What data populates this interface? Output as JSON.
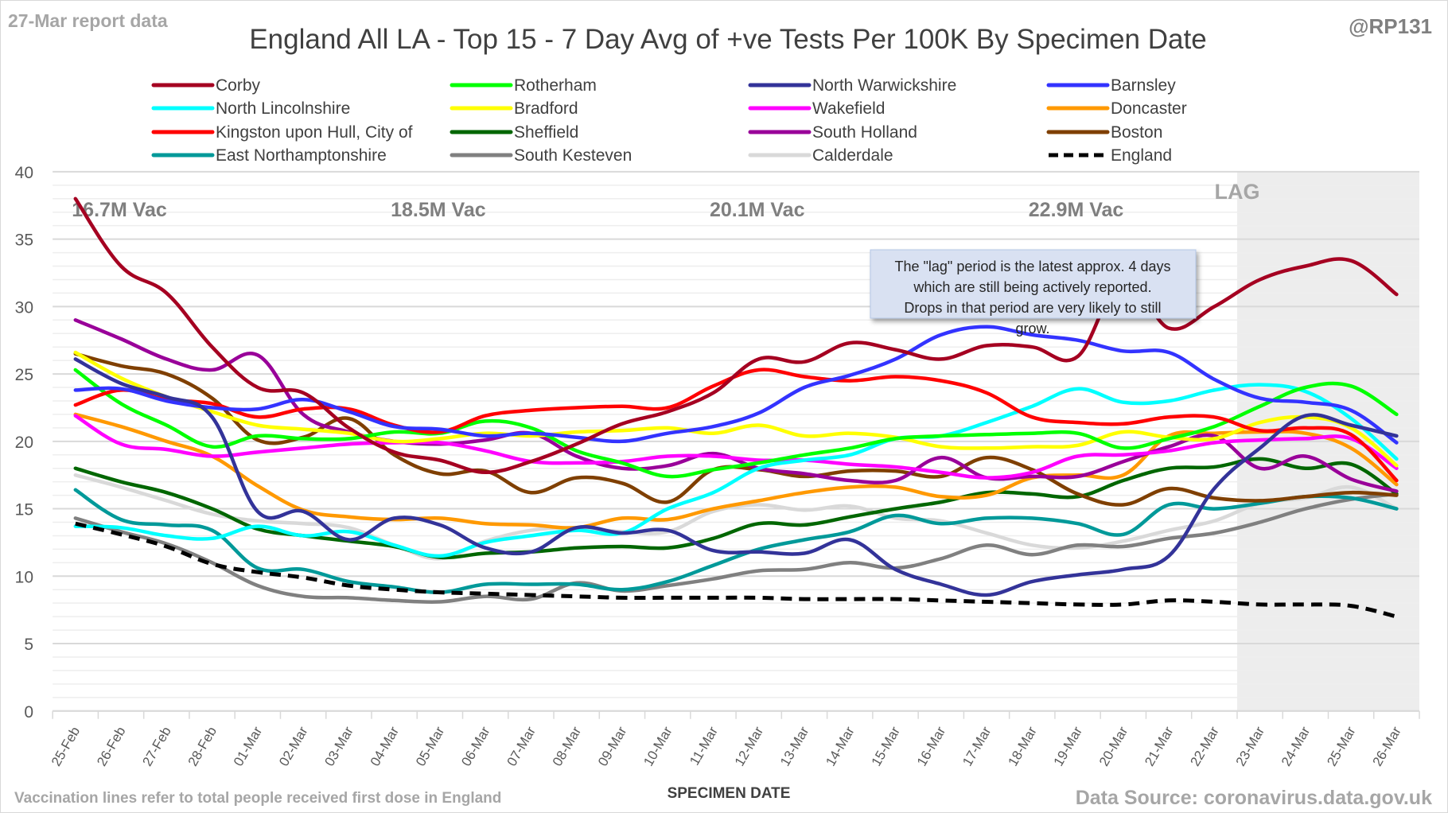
{
  "header": {
    "report_note": "27-Mar report data",
    "handle": "@RP131"
  },
  "footer": {
    "vaccination_note": "Vaccination lines refer to total people received first dose in England",
    "source": "Data Source: coronavirus.data.gov.uk"
  },
  "chart_data": {
    "type": "line",
    "title": "England All LA - Top 15 - 7 Day Avg of +ve Tests Per 100K By Specimen Date",
    "xlabel": "SPECIMEN DATE",
    "ylabel": "",
    "ylim": [
      0,
      40
    ],
    "yticks": [
      0,
      5,
      10,
      15,
      20,
      25,
      30,
      35,
      40
    ],
    "grid": true,
    "legend_position": "top",
    "categories": [
      "25-Feb",
      "26-Feb",
      "27-Feb",
      "28-Feb",
      "01-Mar",
      "02-Mar",
      "03-Mar",
      "04-Mar",
      "05-Mar",
      "06-Mar",
      "07-Mar",
      "08-Mar",
      "09-Mar",
      "10-Mar",
      "11-Mar",
      "12-Mar",
      "13-Mar",
      "14-Mar",
      "15-Mar",
      "16-Mar",
      "17-Mar",
      "18-Mar",
      "19-Mar",
      "20-Mar",
      "21-Mar",
      "22-Mar",
      "23-Mar",
      "24-Mar",
      "25-Mar",
      "26-Mar"
    ],
    "series": [
      {
        "name": "Corby",
        "color": "#a50021",
        "dash": false,
        "values": [
          38.0,
          33.0,
          31.0,
          27.0,
          24.0,
          23.6,
          21.0,
          19.2,
          18.6,
          17.7,
          18.5,
          19.8,
          21.3,
          22.2,
          23.6,
          26.1,
          25.9,
          27.3,
          26.8,
          26.1,
          27.1,
          27.0,
          26.3,
          32.2,
          28.4,
          30.0,
          32.0,
          33.0,
          33.4,
          30.9
        ]
      },
      {
        "name": "Rotherham",
        "color": "#00ff00",
        "dash": false,
        "values": [
          25.3,
          22.8,
          21.2,
          19.6,
          20.4,
          20.2,
          20.2,
          20.7,
          20.6,
          21.5,
          21.0,
          19.3,
          18.4,
          17.4,
          17.9,
          18.4,
          19.0,
          19.5,
          20.2,
          20.4,
          20.5,
          20.6,
          20.6,
          19.5,
          20.2,
          21.1,
          22.6,
          24.0,
          24.1,
          22.0
        ]
      },
      {
        "name": "North Warwickshire",
        "color": "#333399",
        "dash": false,
        "values": [
          26.1,
          24.3,
          23.3,
          21.8,
          14.8,
          14.8,
          12.7,
          14.3,
          13.8,
          12.1,
          11.8,
          13.6,
          13.2,
          13.4,
          11.9,
          11.8,
          11.7,
          12.7,
          10.5,
          9.4,
          8.6,
          9.6,
          10.1,
          10.5,
          11.5,
          16.5,
          19.5,
          21.9,
          21.2,
          20.4
        ]
      },
      {
        "name": "Barnsley",
        "color": "#3333ff",
        "dash": false,
        "values": [
          23.8,
          23.9,
          23.0,
          22.5,
          22.4,
          23.1,
          22.2,
          21.1,
          20.9,
          20.4,
          20.6,
          20.3,
          20.0,
          20.6,
          21.1,
          22.1,
          24.0,
          24.9,
          26.1,
          27.9,
          28.5,
          27.9,
          27.5,
          26.7,
          26.6,
          24.6,
          23.2,
          22.9,
          22.3,
          19.9
        ]
      },
      {
        "name": "North Lincolnshire",
        "color": "#00ffff",
        "dash": false,
        "values": [
          13.7,
          13.6,
          13.0,
          12.8,
          13.7,
          13.0,
          13.3,
          12.3,
          11.5,
          12.5,
          13.0,
          13.4,
          13.2,
          15.0,
          16.2,
          18.0,
          18.6,
          19.0,
          20.2,
          20.4,
          21.4,
          22.6,
          23.9,
          22.9,
          23.0,
          23.8,
          24.2,
          23.7,
          21.7,
          18.7
        ]
      },
      {
        "name": "Bradford",
        "color": "#ffff00",
        "dash": false,
        "values": [
          26.6,
          24.7,
          23.3,
          22.2,
          21.2,
          20.9,
          20.6,
          20.0,
          20.2,
          20.6,
          20.4,
          20.7,
          20.8,
          21.0,
          20.6,
          21.2,
          20.4,
          20.6,
          20.3,
          19.6,
          19.5,
          19.6,
          19.7,
          20.7,
          20.3,
          20.2,
          21.4,
          21.8,
          21.0,
          18.2
        ]
      },
      {
        "name": "Wakefield",
        "color": "#ff00ff",
        "dash": false,
        "values": [
          21.9,
          19.8,
          19.4,
          18.9,
          19.2,
          19.5,
          19.8,
          19.9,
          19.9,
          19.3,
          18.5,
          18.4,
          18.5,
          18.9,
          18.9,
          18.6,
          18.6,
          18.3,
          18.1,
          17.7,
          17.3,
          17.7,
          18.9,
          19.0,
          19.3,
          19.9,
          20.1,
          20.2,
          20.2,
          18.0
        ]
      },
      {
        "name": "Doncaster",
        "color": "#ff9900",
        "dash": false,
        "values": [
          22.0,
          21.1,
          20.0,
          18.9,
          16.7,
          14.9,
          14.4,
          14.2,
          14.3,
          13.9,
          13.8,
          13.6,
          14.3,
          14.2,
          15.0,
          15.6,
          16.2,
          16.6,
          16.6,
          15.9,
          16.0,
          17.3,
          17.5,
          17.5,
          20.4,
          20.6,
          20.7,
          20.6,
          19.5,
          16.8
        ]
      },
      {
        "name": "Kingston upon Hull, City of",
        "color": "#ff0000",
        "dash": false,
        "values": [
          22.7,
          23.8,
          23.1,
          22.8,
          21.8,
          22.4,
          22.4,
          21.2,
          20.7,
          21.9,
          22.3,
          22.5,
          22.6,
          22.5,
          24.1,
          25.3,
          24.8,
          24.5,
          24.8,
          24.5,
          23.6,
          21.8,
          21.4,
          21.3,
          21.8,
          21.8,
          20.8,
          21.0,
          20.5,
          17.1
        ]
      },
      {
        "name": "Sheffield",
        "color": "#006600",
        "dash": false,
        "values": [
          18.0,
          17.0,
          16.2,
          15.0,
          13.5,
          13.0,
          12.6,
          12.2,
          11.4,
          11.7,
          11.8,
          12.1,
          12.2,
          12.1,
          12.8,
          13.9,
          13.8,
          14.4,
          15.0,
          15.5,
          16.2,
          16.1,
          15.9,
          17.1,
          18.0,
          18.1,
          18.7,
          18.0,
          18.3,
          16.1
        ]
      },
      {
        "name": "South Holland",
        "color": "#990099",
        "dash": false,
        "values": [
          29.0,
          27.6,
          26.1,
          25.3,
          26.4,
          22.0,
          20.7,
          20.0,
          19.8,
          20.1,
          20.6,
          18.9,
          18.0,
          18.2,
          19.1,
          18.0,
          17.6,
          17.1,
          17.1,
          18.8,
          17.3,
          17.4,
          17.4,
          18.5,
          19.6,
          20.4,
          18.0,
          18.9,
          17.2,
          16.3
        ]
      },
      {
        "name": "Boston",
        "color": "#7f3f00",
        "dash": false,
        "values": [
          26.5,
          25.6,
          25.0,
          23.2,
          20.1,
          20.3,
          21.7,
          19.0,
          17.6,
          17.8,
          16.2,
          17.3,
          16.9,
          15.5,
          17.9,
          17.9,
          17.4,
          17.8,
          17.8,
          17.4,
          18.8,
          17.9,
          16.1,
          15.3,
          16.5,
          15.8,
          15.6,
          15.9,
          16.2,
          16.0
        ]
      },
      {
        "name": "East Northamptonshire",
        "color": "#009999",
        "dash": false,
        "values": [
          16.4,
          14.2,
          13.8,
          13.4,
          10.6,
          10.5,
          9.6,
          9.2,
          8.8,
          9.4,
          9.4,
          9.4,
          9.0,
          9.6,
          10.8,
          12.0,
          12.7,
          13.3,
          14.5,
          13.9,
          14.3,
          14.3,
          13.9,
          13.1,
          15.3,
          15.0,
          15.4,
          15.9,
          15.8,
          15.0
        ]
      },
      {
        "name": "South Kesteven",
        "color": "#808080",
        "dash": false,
        "values": [
          14.3,
          13.3,
          12.4,
          11.0,
          9.3,
          8.5,
          8.4,
          8.2,
          8.1,
          8.5,
          8.3,
          9.5,
          8.9,
          9.3,
          9.8,
          10.4,
          10.5,
          11.0,
          10.6,
          11.3,
          12.3,
          11.6,
          12.3,
          12.2,
          12.8,
          13.2,
          14.0,
          15.0,
          15.7,
          16.1
        ]
      },
      {
        "name": "Calderdale",
        "color": "#d9d9d9",
        "dash": false,
        "values": [
          17.5,
          16.6,
          15.6,
          14.6,
          14.1,
          13.9,
          13.6,
          12.3,
          11.3,
          12.6,
          13.4,
          13.6,
          13.3,
          13.3,
          14.8,
          15.3,
          14.9,
          15.2,
          14.3,
          14.1,
          13.2,
          12.3,
          12.1,
          12.6,
          13.4,
          14.1,
          15.4,
          15.8,
          16.6,
          15.0
        ]
      },
      {
        "name": "England",
        "color": "#000000",
        "dash": true,
        "values": [
          13.9,
          13.1,
          12.2,
          10.9,
          10.3,
          9.9,
          9.3,
          9.0,
          8.8,
          8.7,
          8.6,
          8.5,
          8.4,
          8.4,
          8.4,
          8.4,
          8.3,
          8.3,
          8.3,
          8.2,
          8.1,
          8.0,
          7.9,
          7.9,
          8.2,
          8.1,
          7.9,
          7.9,
          7.8,
          7.0
        ]
      }
    ],
    "vaccination_markers": [
      {
        "label": "16.7M Vac",
        "category": "26-Feb"
      },
      {
        "label": "18.5M Vac",
        "category": "05-Mar"
      },
      {
        "label": "20.1M Vac",
        "category": "12-Mar"
      },
      {
        "label": "22.9M Vac",
        "category": "19-Mar"
      }
    ],
    "lag_region": {
      "label": "LAG",
      "from_category": "23-Mar",
      "to_category": "26-Mar"
    },
    "annotation": "The \"lag\" period is the latest approx. 4 days which are still being actively reported.  Drops in that period are very likely to still grow."
  }
}
